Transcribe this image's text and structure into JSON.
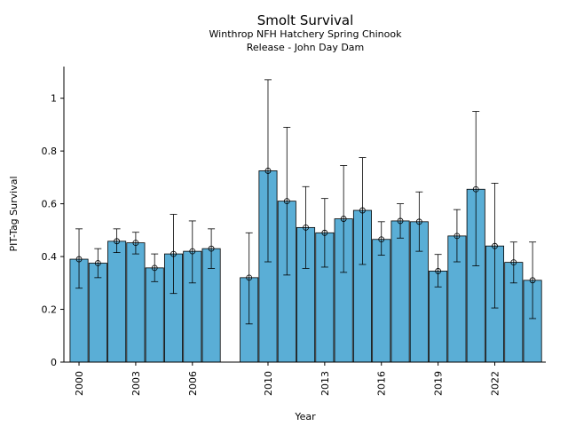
{
  "chart_data": {
    "type": "bar",
    "title": "Smolt Survival",
    "subtitle_lines": [
      "Winthrop NFH Hatchery Spring Chinook",
      "Release - John Day Dam"
    ],
    "xlabel": "Year",
    "ylabel": "PIT-Tag Survival",
    "ylim": [
      0,
      1.12
    ],
    "xlim": [
      1999.2,
      2024.7
    ],
    "yticks": [
      0,
      0.2,
      0.4,
      0.6,
      0.8,
      1
    ],
    "ytick_labels": [
      "0",
      "0.2",
      "0.4",
      "0.6",
      "0.8",
      "1"
    ],
    "xticks": [
      2000,
      2003,
      2006,
      2010,
      2013,
      2016,
      2019,
      2022
    ],
    "xtick_labels": [
      "2000",
      "2003",
      "2006",
      "2010",
      "2013",
      "2016",
      "2019",
      "2022"
    ],
    "bar_color": "#5aaed6",
    "grid": false,
    "points": [
      {
        "year": 2000,
        "value": 0.39,
        "lower": 0.28,
        "upper": 0.505
      },
      {
        "year": 2001,
        "value": 0.375,
        "lower": 0.32,
        "upper": 0.43
      },
      {
        "year": 2002,
        "value": 0.458,
        "lower": 0.415,
        "upper": 0.505
      },
      {
        "year": 2003,
        "value": 0.452,
        "lower": 0.41,
        "upper": 0.492
      },
      {
        "year": 2004,
        "value": 0.357,
        "lower": 0.305,
        "upper": 0.41
      },
      {
        "year": 2005,
        "value": 0.41,
        "lower": 0.26,
        "upper": 0.56
      },
      {
        "year": 2006,
        "value": 0.42,
        "lower": 0.3,
        "upper": 0.535
      },
      {
        "year": 2007,
        "value": 0.43,
        "lower": 0.355,
        "upper": 0.505
      },
      {
        "year": 2009,
        "value": 0.32,
        "lower": 0.145,
        "upper": 0.49
      },
      {
        "year": 2010,
        "value": 0.725,
        "lower": 0.38,
        "upper": 1.07
      },
      {
        "year": 2011,
        "value": 0.61,
        "lower": 0.33,
        "upper": 0.89
      },
      {
        "year": 2012,
        "value": 0.51,
        "lower": 0.355,
        "upper": 0.665
      },
      {
        "year": 2013,
        "value": 0.49,
        "lower": 0.36,
        "upper": 0.62
      },
      {
        "year": 2014,
        "value": 0.543,
        "lower": 0.34,
        "upper": 0.745
      },
      {
        "year": 2015,
        "value": 0.575,
        "lower": 0.37,
        "upper": 0.775
      },
      {
        "year": 2016,
        "value": 0.465,
        "lower": 0.405,
        "upper": 0.532
      },
      {
        "year": 2017,
        "value": 0.535,
        "lower": 0.47,
        "upper": 0.6
      },
      {
        "year": 2018,
        "value": 0.532,
        "lower": 0.42,
        "upper": 0.645
      },
      {
        "year": 2019,
        "value": 0.345,
        "lower": 0.285,
        "upper": 0.408
      },
      {
        "year": 2020,
        "value": 0.478,
        "lower": 0.38,
        "upper": 0.578
      },
      {
        "year": 2021,
        "value": 0.655,
        "lower": 0.365,
        "upper": 0.95
      },
      {
        "year": 2022,
        "value": 0.44,
        "lower": 0.205,
        "upper": 0.678
      },
      {
        "year": 2023,
        "value": 0.378,
        "lower": 0.3,
        "upper": 0.455
      },
      {
        "year": 2024,
        "value": 0.31,
        "lower": 0.165,
        "upper": 0.455
      }
    ]
  }
}
